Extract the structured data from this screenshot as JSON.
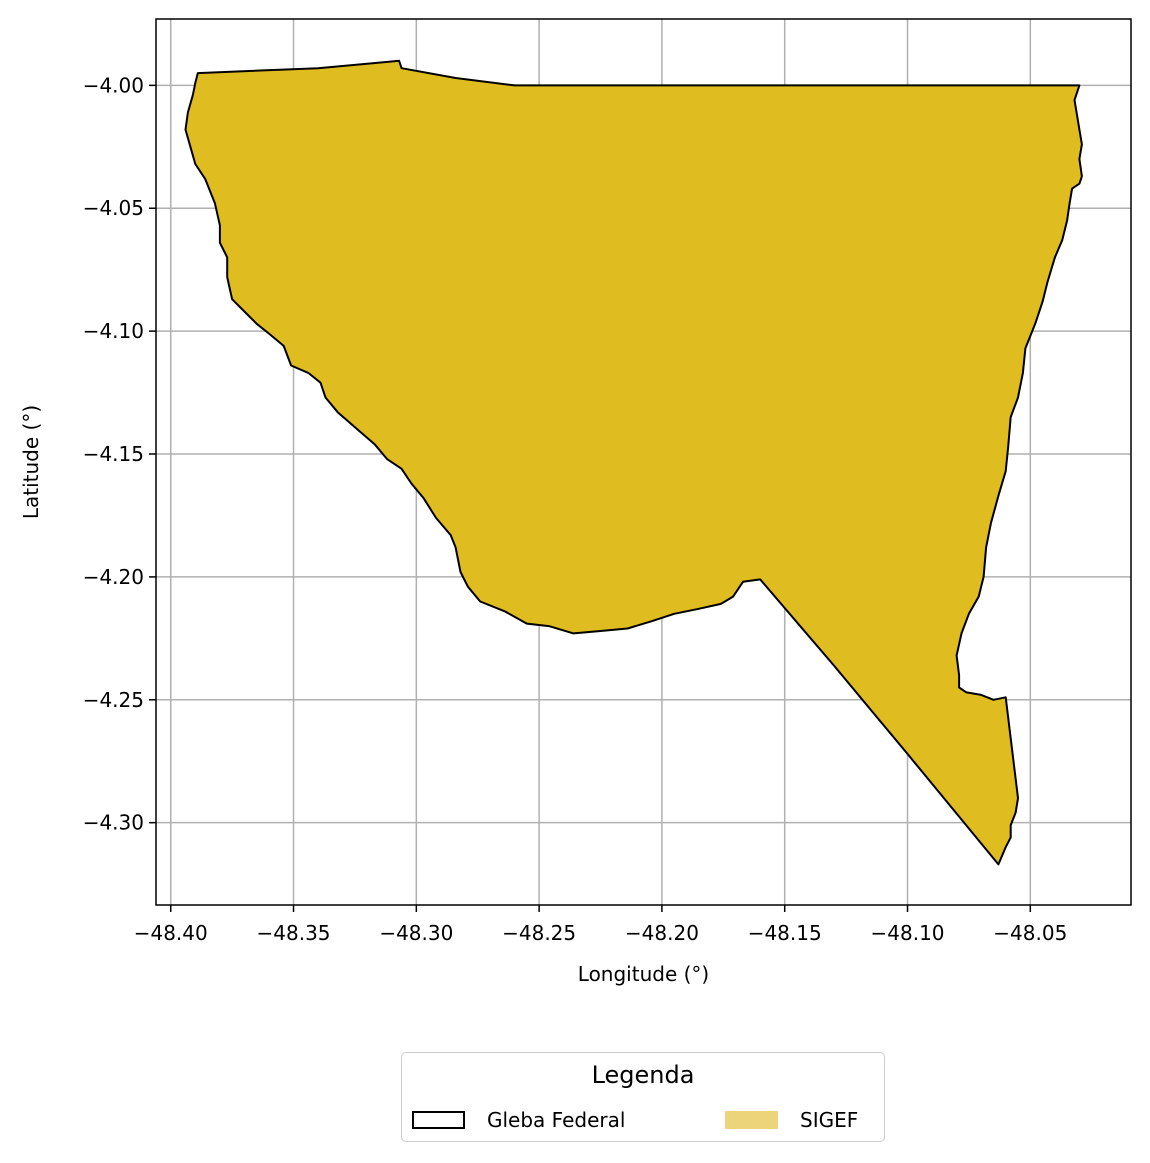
{
  "chart_data": {
    "type": "map",
    "xlabel": "Longitude (°)",
    "ylabel": "Latitude (°)",
    "xlim": [
      -48.406,
      -48.009
    ],
    "ylim": [
      -4.3335,
      -3.973
    ],
    "xticks": [
      -48.4,
      -48.35,
      -48.3,
      -48.25,
      -48.2,
      -48.15,
      -48.1,
      -48.05
    ],
    "xtick_labels": [
      "−48.40",
      "−48.35",
      "−48.30",
      "−48.25",
      "−48.20",
      "−48.15",
      "−48.10",
      "−48.05"
    ],
    "yticks": [
      -4.0,
      -4.05,
      -4.1,
      -4.15,
      -4.2,
      -4.25,
      -4.3
    ],
    "ytick_labels": [
      "−4.00",
      "−4.05",
      "−4.10",
      "−4.15",
      "−4.20",
      "−4.25",
      "−4.30"
    ],
    "grid": true,
    "legend_placement": "bottom-center, below plot",
    "fill_color": "#dfbc1f",
    "outline_color": "#000000",
    "legend_swatch_fill": "#ebd47a",
    "series": [
      {
        "name": "Gleba Federal",
        "kind": "polygon outline",
        "coordinates": [
          [
            -48.307,
            -3.99
          ],
          [
            -48.306,
            -3.993
          ],
          [
            -48.284,
            -3.997
          ],
          [
            -48.26,
            -4.0
          ],
          [
            -48.23,
            -4.0
          ],
          [
            -48.15,
            -4.0
          ],
          [
            -48.08,
            -4.0
          ],
          [
            -48.03,
            -4.0
          ],
          [
            -48.032,
            -4.006
          ],
          [
            -48.031,
            -4.012
          ],
          [
            -48.03,
            -4.018
          ],
          [
            -48.029,
            -4.024
          ],
          [
            -48.03,
            -4.03
          ],
          [
            -48.029,
            -4.037
          ],
          [
            -48.03,
            -4.04
          ],
          [
            -48.033,
            -4.042
          ],
          [
            -48.034,
            -4.048
          ],
          [
            -48.035,
            -4.055
          ],
          [
            -48.037,
            -4.063
          ],
          [
            -48.04,
            -4.07
          ],
          [
            -48.043,
            -4.08
          ],
          [
            -48.045,
            -4.088
          ],
          [
            -48.048,
            -4.097
          ],
          [
            -48.052,
            -4.107
          ],
          [
            -48.053,
            -4.117
          ],
          [
            -48.055,
            -4.127
          ],
          [
            -48.058,
            -4.135
          ],
          [
            -48.059,
            -4.147
          ],
          [
            -48.06,
            -4.157
          ],
          [
            -48.063,
            -4.167
          ],
          [
            -48.066,
            -4.178
          ],
          [
            -48.068,
            -4.188
          ],
          [
            -48.069,
            -4.2
          ],
          [
            -48.071,
            -4.208
          ],
          [
            -48.075,
            -4.215
          ],
          [
            -48.078,
            -4.223
          ],
          [
            -48.08,
            -4.232
          ],
          [
            -48.079,
            -4.24
          ],
          [
            -48.079,
            -4.245
          ],
          [
            -48.076,
            -4.247
          ],
          [
            -48.07,
            -4.248
          ],
          [
            -48.065,
            -4.25
          ],
          [
            -48.06,
            -4.249
          ],
          [
            -48.055,
            -4.29
          ],
          [
            -48.056,
            -4.296
          ],
          [
            -48.058,
            -4.301
          ],
          [
            -48.058,
            -4.306
          ],
          [
            -48.06,
            -4.31
          ],
          [
            -48.063,
            -4.317
          ],
          [
            -48.1,
            -4.272
          ],
          [
            -48.13,
            -4.236
          ],
          [
            -48.16,
            -4.201
          ],
          [
            -48.167,
            -4.202
          ],
          [
            -48.171,
            -4.208
          ],
          [
            -48.176,
            -4.211
          ],
          [
            -48.185,
            -4.213
          ],
          [
            -48.195,
            -4.215
          ],
          [
            -48.204,
            -4.218
          ],
          [
            -48.214,
            -4.221
          ],
          [
            -48.225,
            -4.222
          ],
          [
            -48.236,
            -4.223
          ],
          [
            -48.246,
            -4.22
          ],
          [
            -48.255,
            -4.219
          ],
          [
            -48.264,
            -4.214
          ],
          [
            -48.274,
            -4.21
          ],
          [
            -48.279,
            -4.204
          ],
          [
            -48.282,
            -4.198
          ],
          [
            -48.284,
            -4.188
          ],
          [
            -48.286,
            -4.183
          ],
          [
            -48.292,
            -4.176
          ],
          [
            -48.297,
            -4.168
          ],
          [
            -48.302,
            -4.162
          ],
          [
            -48.306,
            -4.156
          ],
          [
            -48.312,
            -4.152
          ],
          [
            -48.317,
            -4.146
          ],
          [
            -48.324,
            -4.14
          ],
          [
            -48.332,
            -4.133
          ],
          [
            -48.337,
            -4.127
          ],
          [
            -48.339,
            -4.121
          ],
          [
            -48.344,
            -4.117
          ],
          [
            -48.351,
            -4.114
          ],
          [
            -48.354,
            -4.106
          ],
          [
            -48.36,
            -4.101
          ],
          [
            -48.365,
            -4.097
          ],
          [
            -48.37,
            -4.092
          ],
          [
            -48.375,
            -4.087
          ],
          [
            -48.377,
            -4.078
          ],
          [
            -48.377,
            -4.07
          ],
          [
            -48.38,
            -4.064
          ],
          [
            -48.38,
            -4.057
          ],
          [
            -48.382,
            -4.048
          ],
          [
            -48.386,
            -4.038
          ],
          [
            -48.39,
            -4.032
          ],
          [
            -48.392,
            -4.025
          ],
          [
            -48.394,
            -4.018
          ],
          [
            -48.393,
            -4.011
          ],
          [
            -48.391,
            -4.004
          ],
          [
            -48.39,
            -3.999
          ],
          [
            -48.389,
            -3.995
          ],
          [
            -48.34,
            -3.993
          ]
        ]
      },
      {
        "name": "SIGEF",
        "kind": "filled polygon",
        "same_geometry_as": "Gleba Federal"
      }
    ]
  },
  "legend": {
    "title": "Legenda",
    "items": [
      {
        "label": "Gleba Federal",
        "swatch": "outline"
      },
      {
        "label": "SIGEF",
        "swatch": "fill"
      }
    ]
  }
}
